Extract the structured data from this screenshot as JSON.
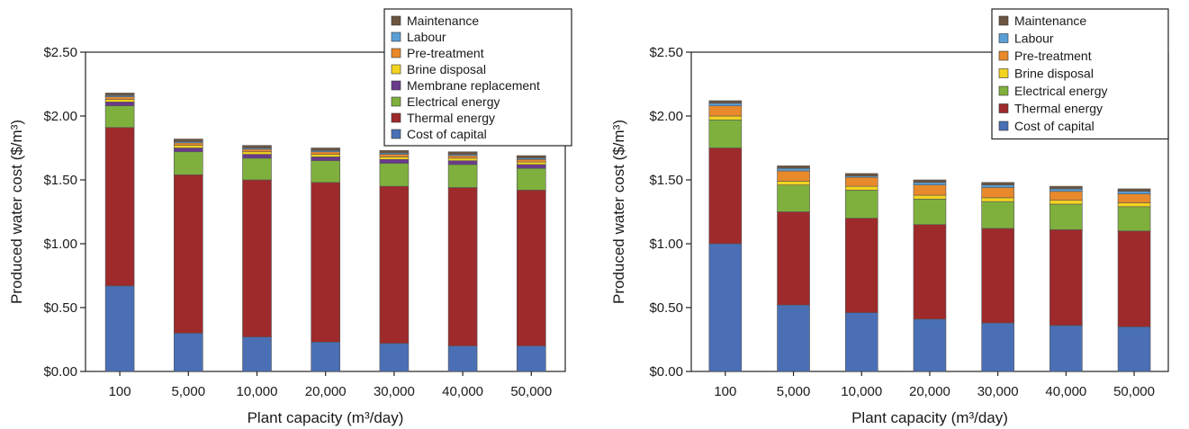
{
  "chart_data": [
    {
      "type": "bar",
      "stacked": true,
      "title": "",
      "xlabel": "Plant capacity (m³/day)",
      "ylabel": "Produced water cost ($/m³)",
      "ylim": [
        0,
        2.5
      ],
      "yticks": [
        "$0.00",
        "$0.50",
        "$1.00",
        "$1.50",
        "$2.00",
        "$2.50"
      ],
      "categories": [
        "100",
        "5,000",
        "10,000",
        "20,000",
        "30,000",
        "40,000",
        "50,000"
      ],
      "legend_position": "top-right",
      "series": [
        {
          "name": "Cost of capital",
          "color": "#4a6fb5",
          "values": [
            0.67,
            0.3,
            0.27,
            0.23,
            0.22,
            0.2,
            0.2
          ]
        },
        {
          "name": "Thermal energy",
          "color": "#9e2a2b",
          "values": [
            1.24,
            1.24,
            1.23,
            1.25,
            1.23,
            1.24,
            1.22
          ]
        },
        {
          "name": "Electrical energy",
          "color": "#7fb03d",
          "values": [
            0.17,
            0.18,
            0.17,
            0.17,
            0.18,
            0.18,
            0.17
          ]
        },
        {
          "name": "Membrane replacement",
          "color": "#6a3a8c",
          "values": [
            0.03,
            0.03,
            0.03,
            0.03,
            0.03,
            0.03,
            0.03
          ]
        },
        {
          "name": "Brine disposal",
          "color": "#f3d31f",
          "values": [
            0.02,
            0.02,
            0.02,
            0.02,
            0.02,
            0.02,
            0.02
          ]
        },
        {
          "name": "Pre-treatment",
          "color": "#e8892c",
          "values": [
            0.02,
            0.02,
            0.02,
            0.02,
            0.02,
            0.02,
            0.02
          ]
        },
        {
          "name": "Labour",
          "color": "#5a9fd6",
          "values": [
            0.01,
            0.01,
            0.01,
            0.01,
            0.01,
            0.01,
            0.01
          ]
        },
        {
          "name": "Maintenance",
          "color": "#6b5440",
          "values": [
            0.02,
            0.02,
            0.02,
            0.02,
            0.02,
            0.02,
            0.02
          ]
        }
      ]
    },
    {
      "type": "bar",
      "stacked": true,
      "title": "",
      "xlabel": "Plant capacity (m³/day)",
      "ylabel": "Produced water cost ($/m³)",
      "ylim": [
        0,
        2.5
      ],
      "yticks": [
        "$0.00",
        "$0.50",
        "$1.00",
        "$1.50",
        "$2.00",
        "$2.50"
      ],
      "categories": [
        "100",
        "5,000",
        "10,000",
        "20,000",
        "30,000",
        "40,000",
        "50,000"
      ],
      "legend_position": "top-right",
      "series": [
        {
          "name": "Cost of capital",
          "color": "#4a6fb5",
          "values": [
            1.0,
            0.52,
            0.46,
            0.41,
            0.38,
            0.36,
            0.35
          ]
        },
        {
          "name": "Thermal energy",
          "color": "#9e2a2b",
          "values": [
            0.75,
            0.73,
            0.74,
            0.74,
            0.74,
            0.75,
            0.75
          ]
        },
        {
          "name": "Electrical energy",
          "color": "#7fb03d",
          "values": [
            0.22,
            0.21,
            0.22,
            0.2,
            0.21,
            0.2,
            0.19
          ]
        },
        {
          "name": "Brine disposal",
          "color": "#f3d31f",
          "values": [
            0.03,
            0.03,
            0.03,
            0.03,
            0.03,
            0.03,
            0.03
          ]
        },
        {
          "name": "Pre-treatment",
          "color": "#e8892c",
          "values": [
            0.08,
            0.08,
            0.07,
            0.08,
            0.08,
            0.07,
            0.07
          ]
        },
        {
          "name": "Labour",
          "color": "#5a9fd6",
          "values": [
            0.02,
            0.02,
            0.01,
            0.02,
            0.02,
            0.02,
            0.02
          ]
        },
        {
          "name": "Maintenance",
          "color": "#6b5440",
          "values": [
            0.02,
            0.02,
            0.02,
            0.02,
            0.02,
            0.02,
            0.02
          ]
        }
      ]
    }
  ]
}
